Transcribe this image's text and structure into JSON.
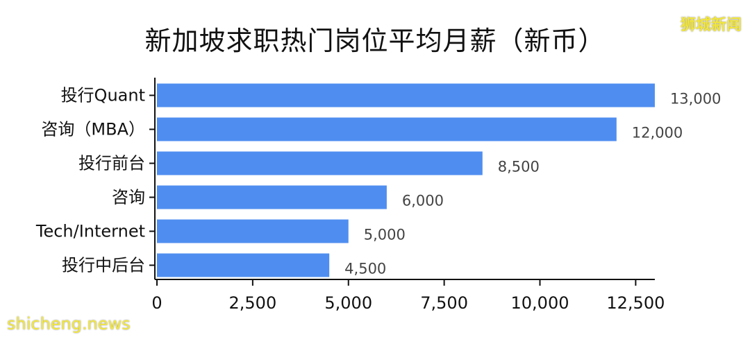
{
  "chart_data": {
    "type": "bar",
    "orientation": "horizontal",
    "title": "新加坡求职热门岗位平均月薪（新币）",
    "categories": [
      "投行Quant",
      "咨询（MBA）",
      "投行前台",
      "咨询",
      "Tech/Internet",
      "投行中后台"
    ],
    "values": [
      13000,
      12000,
      8500,
      6000,
      5000,
      4500
    ],
    "value_labels": [
      "13,000",
      "12,000",
      "8,500",
      "6,000",
      "5,000",
      "4,500"
    ],
    "x_ticks": [
      0,
      2500,
      5000,
      7500,
      10000,
      12500
    ],
    "x_tick_labels": [
      "0",
      "2,500",
      "5,000",
      "7,500",
      "10,000",
      "12,500"
    ],
    "xlim": [
      0,
      13000
    ],
    "grid": false,
    "legend": "none",
    "bar_color": "#4f8ef0"
  },
  "watermarks": {
    "top_right": "狮城新闻",
    "bottom_left": "shicheng.news"
  }
}
